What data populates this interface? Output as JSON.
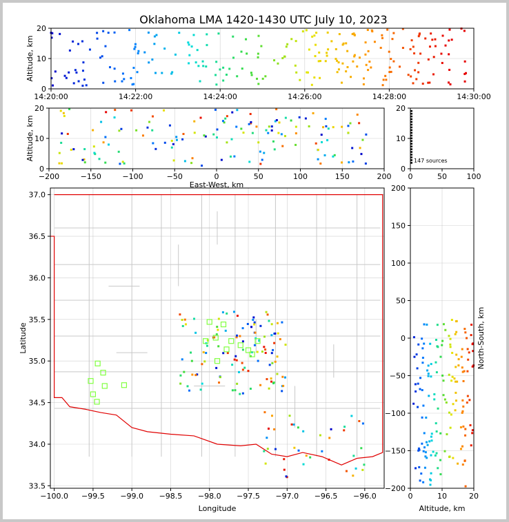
{
  "title": "Oklahoma LMA 1420-1430 UTC July 10, 2023",
  "colors": {
    "border": "#e00000",
    "county": "#c8c8c8",
    "station": "#80ff40",
    "density": "#000000"
  },
  "source_count": "147 sources",
  "chart_data": [
    {
      "id": "time-altitude",
      "type": "scatter",
      "ylabel": "Altitude, km",
      "xlabel": "",
      "xticks": [
        "14:20:00",
        "14:22:00",
        "14:24:00",
        "14:26:00",
        "14:28:00",
        "14:30:00"
      ],
      "xlim_minutes": [
        0,
        10
      ],
      "ylim": [
        0,
        20
      ],
      "yticks": [
        "0",
        "10",
        "20"
      ],
      "grid": true
    },
    {
      "id": "eastwest-altitude",
      "type": "scatter",
      "xlabel": "East-West, km",
      "ylabel": "Altitude, km",
      "xlim": [
        -200,
        200
      ],
      "ylim": [
        0,
        20
      ],
      "xticks": [
        "−200",
        "−150",
        "−100",
        "−50",
        "0",
        "50",
        "100",
        "150",
        "200"
      ],
      "yticks": [
        "0",
        "10",
        "20"
      ],
      "grid": true
    },
    {
      "id": "altitude-histogram",
      "type": "scatter",
      "xlim": [
        0,
        100
      ],
      "ylim": [
        0,
        20
      ],
      "xticks": [
        "0",
        "50",
        "100"
      ],
      "yticks": [
        "0",
        "10",
        "20"
      ],
      "annotation": "147 sources"
    },
    {
      "id": "plan-view",
      "type": "scatter",
      "xlabel": "Longitude",
      "ylabel": "Latitude",
      "xlim": [
        -100.05,
        -95.75
      ],
      "ylim": [
        33.47,
        37.08
      ],
      "xticks": [
        "−100.0",
        "−99.5",
        "−99.0",
        "−98.5",
        "−98.0",
        "−97.5",
        "−97.0",
        "−96.5",
        "−96.0"
      ],
      "yticks": [
        "33.5",
        "34.0",
        "34.5",
        "35.0",
        "35.5",
        "36.0",
        "36.5",
        "37.0"
      ],
      "grid": true,
      "stations_lonlat": [
        [
          -99.44,
          34.97
        ],
        [
          -99.37,
          34.86
        ],
        [
          -99.53,
          34.76
        ],
        [
          -99.35,
          34.7
        ],
        [
          -99.5,
          34.6
        ],
        [
          -99.45,
          34.51
        ],
        [
          -99.1,
          34.71
        ],
        [
          -98.0,
          35.47
        ],
        [
          -97.82,
          35.44
        ],
        [
          -98.05,
          35.24
        ],
        [
          -97.92,
          35.28
        ],
        [
          -97.72,
          35.24
        ],
        [
          -97.6,
          35.19
        ],
        [
          -97.78,
          35.14
        ],
        [
          -97.5,
          35.13
        ],
        [
          -97.38,
          35.24
        ],
        [
          -97.9,
          35.0
        ],
        [
          -97.45,
          35.08
        ]
      ]
    },
    {
      "id": "altitude-northsouth",
      "type": "scatter",
      "xlabel": "Altitude, km",
      "ylabel": "North-South, km",
      "xlim": [
        0,
        20
      ],
      "ylim": [
        -200,
        200
      ],
      "xticks": [
        "0",
        "10",
        "20"
      ],
      "yticks": [
        "−200",
        "−150",
        "−100",
        "−50",
        "0",
        "50",
        "100",
        "150",
        "200"
      ],
      "grid": true
    }
  ]
}
